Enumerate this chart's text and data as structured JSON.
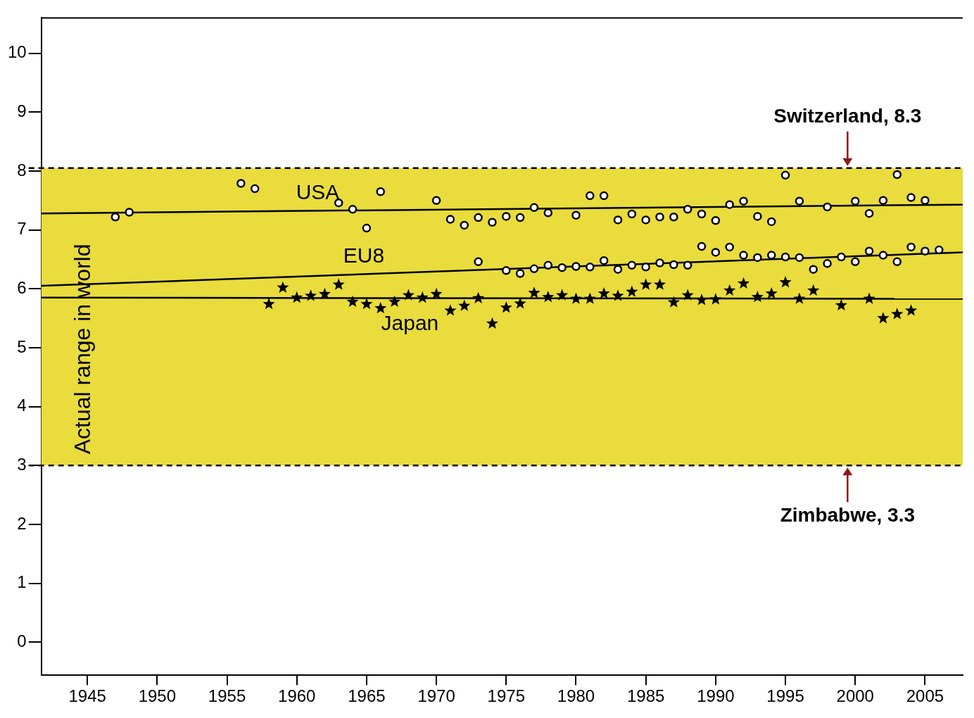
{
  "chart_data": {
    "type": "scatter",
    "xlim": [
      1941.7,
      2007.7
    ],
    "ylim": [
      -0.56,
      10.6
    ],
    "xticks": [
      1945,
      1950,
      1955,
      1960,
      1965,
      1970,
      1975,
      1980,
      1985,
      1990,
      1995,
      2000,
      2005
    ],
    "yticks": [
      0,
      1,
      2,
      3,
      4,
      5,
      6,
      7,
      8,
      9,
      10
    ],
    "grid": false,
    "legend": false,
    "bands": [
      {
        "axis": "y",
        "from": 3.0,
        "to": 8.05,
        "label": "Actual range in world",
        "color": "#e9dc3c"
      }
    ],
    "ref_lines": [
      {
        "axis": "y",
        "value": 8.05,
        "label": "Switzerland, 8.3",
        "line_style": "dashed",
        "color": "#000000"
      },
      {
        "axis": "y",
        "value": 3.0,
        "label": "Zimbabwe, 3.3",
        "line_style": "dashed",
        "color": "#000000"
      }
    ],
    "series": [
      {
        "marker": "circle",
        "color": "#000000",
        "x": [
          1947,
          1948,
          1956,
          1957,
          1963,
          1964,
          1965,
          1966,
          1970,
          1971,
          1972,
          1973,
          1974,
          1975,
          1976,
          1977,
          1978,
          1980,
          1981,
          1982,
          1983,
          1984,
          1985,
          1986,
          1987,
          1988,
          1989,
          1990,
          1991,
          1992,
          1993,
          1994,
          1995,
          1996,
          1998,
          2000,
          2001,
          2002,
          2003,
          2004,
          2005
        ],
        "values": [
          7.22,
          7.3,
          7.79,
          7.7,
          7.46,
          7.35,
          7.03,
          7.65,
          7.5,
          7.18,
          7.08,
          7.21,
          7.13,
          7.23,
          7.21,
          7.38,
          7.29,
          7.25,
          7.58,
          7.58,
          7.17,
          7.27,
          7.17,
          7.22,
          7.22,
          7.35,
          7.27,
          7.16,
          7.43,
          7.49,
          7.23,
          7.14,
          7.93,
          7.49,
          7.39,
          7.49,
          7.28,
          7.5,
          7.94,
          7.55,
          7.5
        ]
      },
      {
        "marker": "circle",
        "color": "#000000",
        "x": [
          1973,
          1975,
          1976,
          1977,
          1978,
          1979,
          1980,
          1981,
          1982,
          1983,
          1984,
          1985,
          1986,
          1987,
          1988,
          1989,
          1990,
          1991,
          1992,
          1993,
          1994,
          1995,
          1996,
          1997,
          1998,
          1999,
          2000,
          2001,
          2002,
          2003,
          2004,
          2005,
          2006
        ],
        "values": [
          6.46,
          6.31,
          6.26,
          6.34,
          6.4,
          6.36,
          6.38,
          6.37,
          6.48,
          6.33,
          6.4,
          6.37,
          6.44,
          6.41,
          6.4,
          6.72,
          6.62,
          6.71,
          6.57,
          6.53,
          6.57,
          6.54,
          6.53,
          6.33,
          6.43,
          6.54,
          6.46,
          6.64,
          6.57,
          6.46,
          6.71,
          6.64,
          6.66
        ]
      },
      {
        "marker": "star",
        "color": "#000000",
        "x": [
          1958,
          1959,
          1960,
          1961,
          1962,
          1963,
          1964,
          1965,
          1966,
          1967,
          1968,
          1969,
          1970,
          1971,
          1972,
          1973,
          1974,
          1975,
          1976,
          1977,
          1978,
          1979,
          1980,
          1981,
          1982,
          1983,
          1984,
          1985,
          1986,
          1987,
          1988,
          1989,
          1990,
          1991,
          1992,
          1993,
          1994,
          1995,
          1996,
          1997,
          1999,
          2001,
          2002,
          2003,
          2004
        ],
        "values": [
          5.74,
          6.02,
          5.85,
          5.88,
          5.91,
          6.07,
          5.78,
          5.74,
          5.67,
          5.78,
          5.89,
          5.85,
          5.91,
          5.63,
          5.71,
          5.84,
          5.41,
          5.68,
          5.75,
          5.93,
          5.86,
          5.89,
          5.83,
          5.83,
          5.92,
          5.88,
          5.95,
          6.07,
          6.07,
          5.77,
          5.89,
          5.81,
          5.82,
          5.97,
          6.09,
          5.86,
          5.92,
          6.11,
          5.83,
          5.97,
          5.72,
          5.83,
          5.5,
          5.57,
          5.63
        ]
      },
      {
        "type": "line",
        "name": "USA",
        "color": "#000000",
        "marker": "none",
        "line_style": "solid",
        "x": [
          1941.7,
          2007.7
        ],
        "values": [
          7.28,
          7.43
        ]
      },
      {
        "type": "line",
        "name": "EU8",
        "color": "#000000",
        "marker": "none",
        "line_style": "solid",
        "x": [
          1941.7,
          2007.7
        ],
        "values": [
          6.05,
          6.62
        ]
      },
      {
        "type": "line",
        "name": "Japan",
        "color": "#000000",
        "marker": "none",
        "line_style": "solid",
        "x": [
          1941.7,
          2007.7
        ],
        "values": [
          5.85,
          5.83
        ]
      }
    ]
  }
}
